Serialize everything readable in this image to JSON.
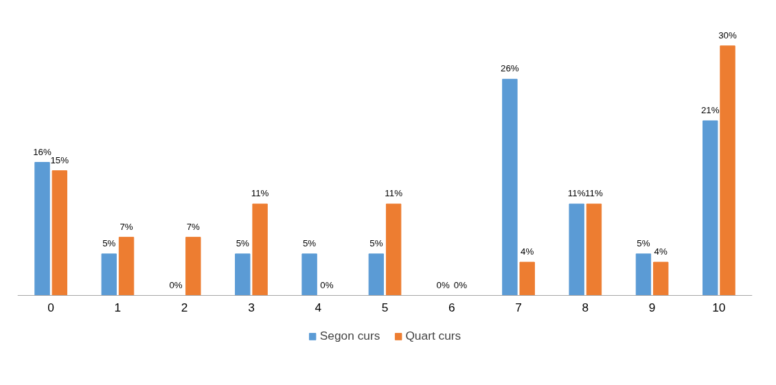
{
  "chart_data": {
    "type": "bar",
    "categories": [
      "0",
      "1",
      "2",
      "3",
      "4",
      "5",
      "6",
      "7",
      "8",
      "9",
      "10"
    ],
    "series": [
      {
        "name": "Segon curs",
        "color": "#5b9bd5",
        "values": [
          16,
          5,
          0,
          5,
          5,
          5,
          0,
          26,
          11,
          5,
          21
        ],
        "value_labels": [
          "16%",
          "5%",
          "0%",
          "5%",
          "5%",
          "5%",
          "0%",
          "26%",
          "11%",
          "5%",
          "21%"
        ]
      },
      {
        "name": "Quart curs",
        "color": "#ed7d31",
        "values": [
          15,
          7,
          7,
          11,
          0,
          11,
          0,
          4,
          11,
          4,
          30
        ],
        "value_labels": [
          "15%",
          "7%",
          "7%",
          "11%",
          "0%",
          "11%",
          "0%",
          "4%",
          "11%",
          "4%",
          "30%"
        ]
      }
    ],
    "legend": "bottom"
  }
}
